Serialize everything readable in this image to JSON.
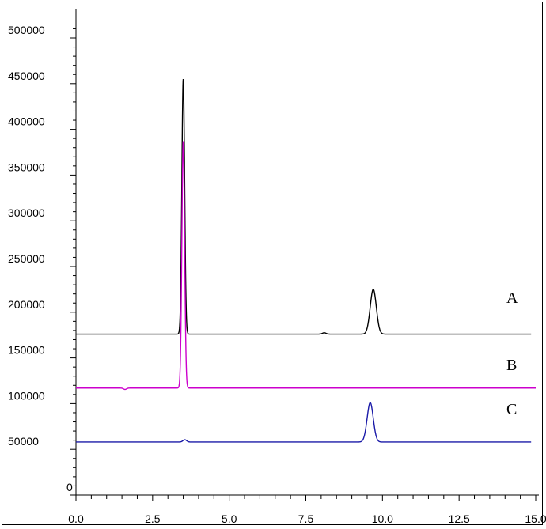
{
  "chart_data": {
    "type": "line",
    "title": "",
    "xlabel": "",
    "ylabel": "",
    "xlim": [
      0.0,
      15.0
    ],
    "ylim": [
      0,
      520000
    ],
    "x_ticks": [
      "0.0",
      "2.5",
      "5.0",
      "7.5",
      "10.0",
      "12.5",
      "15.0"
    ],
    "y_ticks": [
      "0",
      "50000",
      "100000",
      "150000",
      "200000",
      "250000",
      "300000",
      "350000",
      "400000",
      "450000",
      "500000"
    ],
    "grid": false,
    "series": [
      {
        "name": "A",
        "color": "#000000",
        "baseline": 176000,
        "x_end": 14.85,
        "peaks": [
          {
            "rt": 3.5,
            "height": 455000,
            "width": 0.045
          },
          {
            "rt": 9.7,
            "height": 225000,
            "width": 0.1
          },
          {
            "rt": 8.1,
            "height": 177500,
            "width": 0.06
          }
        ]
      },
      {
        "name": "B",
        "color": "#cc00cc",
        "baseline": 117000,
        "x_end": 15.0,
        "peaks": [
          {
            "rt": 3.5,
            "height": 387000,
            "width": 0.045
          },
          {
            "rt": 1.6,
            "height": 115500,
            "width": 0.05
          }
        ]
      },
      {
        "name": "C",
        "color": "#1a1aa8",
        "baseline": 58000,
        "x_end": 14.85,
        "peaks": [
          {
            "rt": 9.6,
            "height": 101000,
            "width": 0.1
          },
          {
            "rt": 3.55,
            "height": 60500,
            "width": 0.06
          }
        ]
      }
    ]
  }
}
